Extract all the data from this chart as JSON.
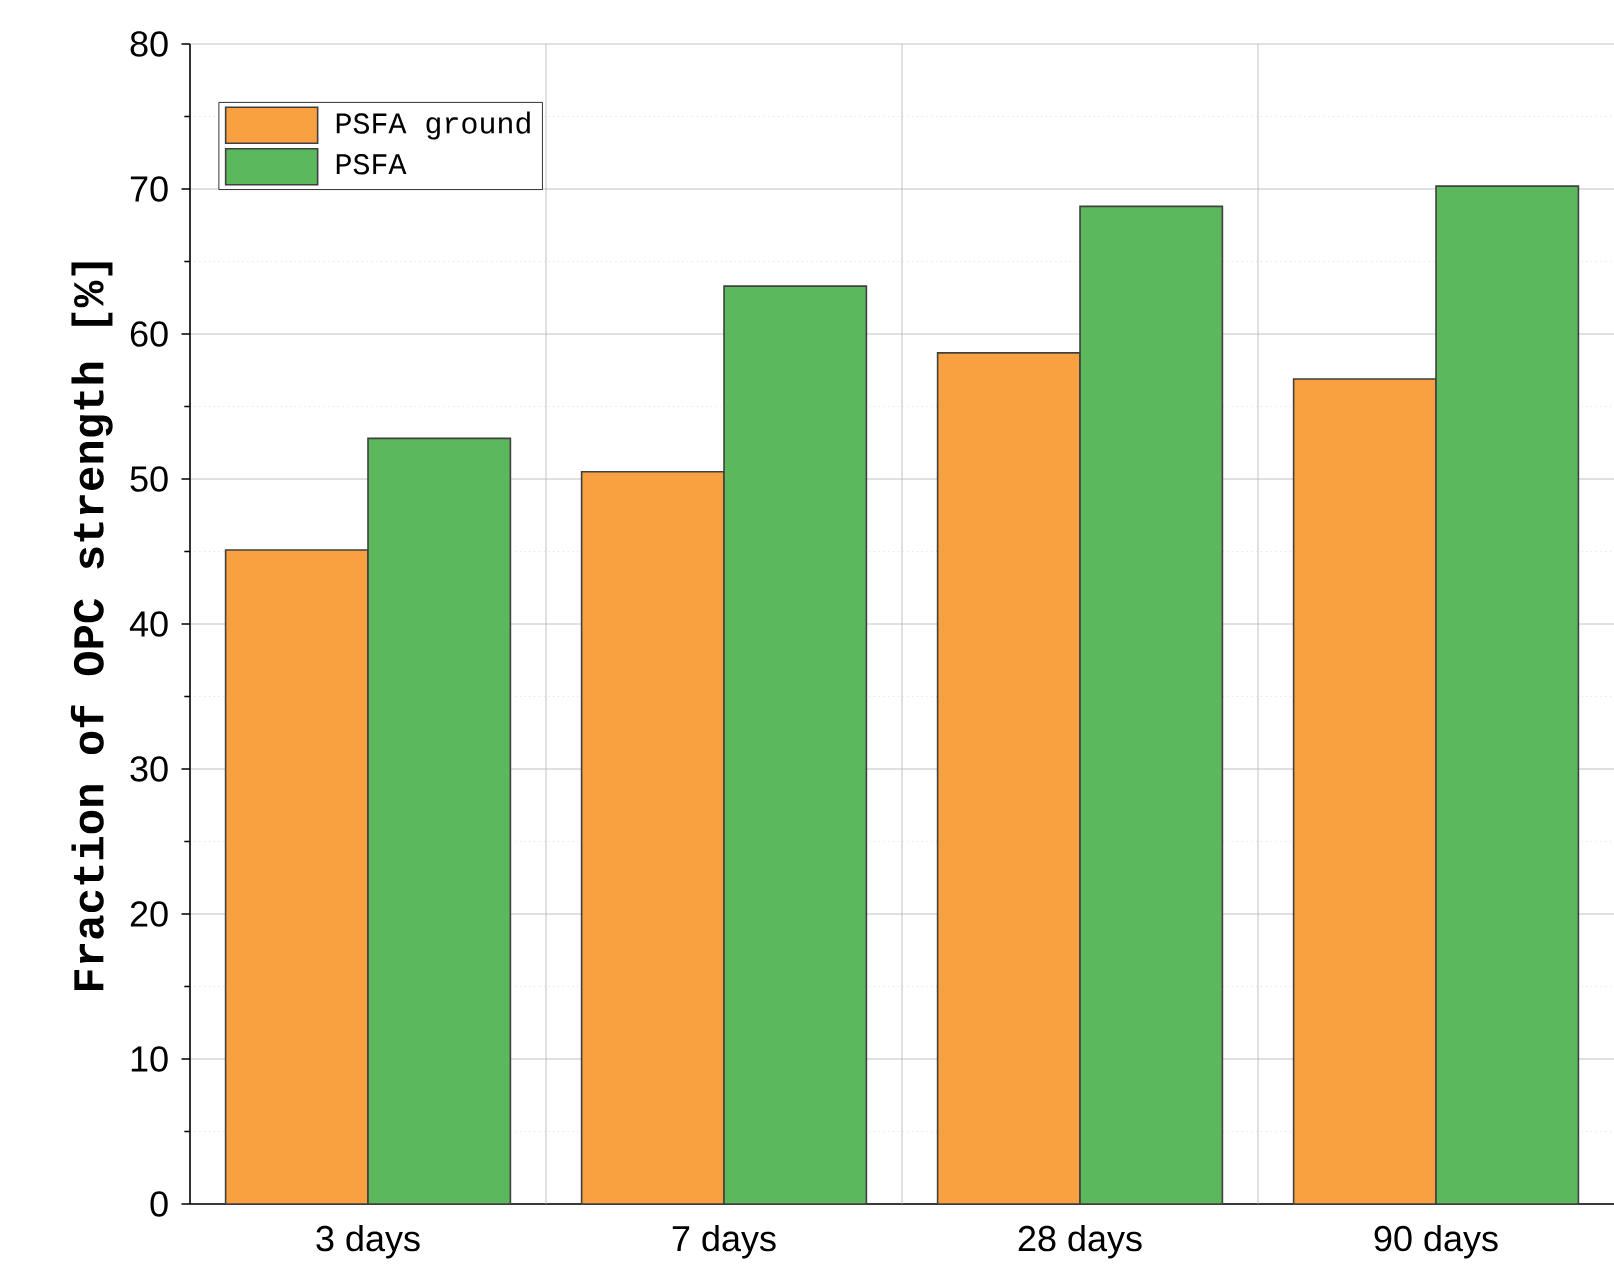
{
  "chart_data": {
    "type": "bar",
    "ylabel": "Fraction of OPC strength [%]",
    "categories": [
      "3 days",
      "7 days",
      "28 days",
      "90 days"
    ],
    "series": [
      {
        "name": "PSFA ground",
        "color": "#f9a040",
        "values": [
          45.1,
          50.5,
          58.7,
          56.9
        ]
      },
      {
        "name": "PSFA",
        "color": "#5cb85c",
        "values": [
          52.8,
          63.3,
          68.8,
          70.2
        ]
      }
    ],
    "ylim": [
      0,
      80
    ],
    "yticks": [
      0,
      10,
      20,
      30,
      40,
      50,
      60,
      70,
      80
    ],
    "grid": true,
    "legend": "top left"
  }
}
